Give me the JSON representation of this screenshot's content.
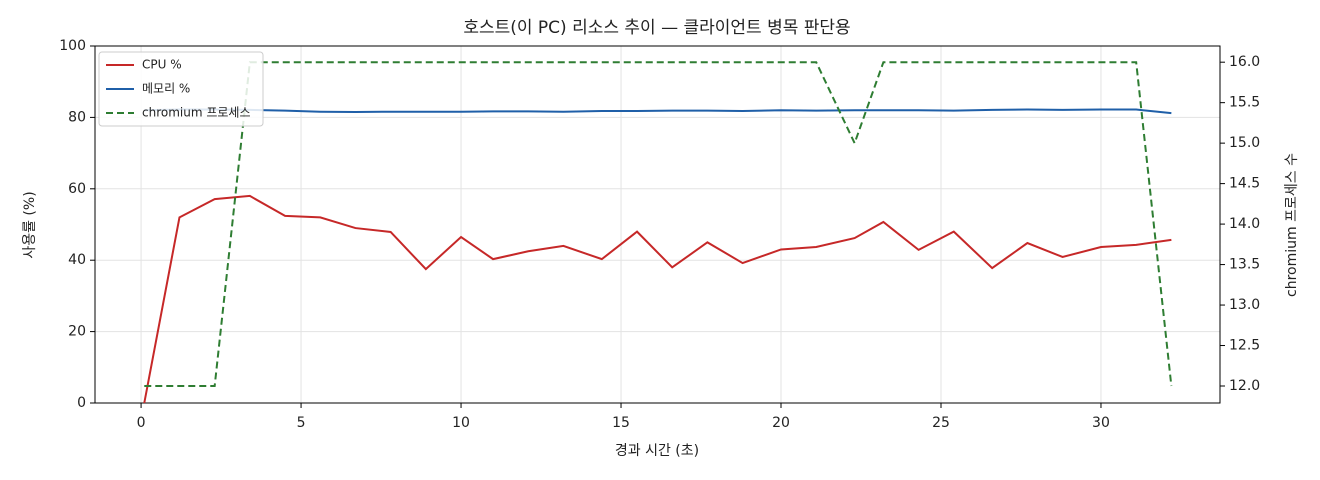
{
  "chart_data": {
    "type": "line",
    "title": "호스트(이 PC) 리소스 추이 — 클라이언트 병목 판단용",
    "x_label": "경과 시간 (초)",
    "y_label": "사용률 (%)",
    "y2_label": "chromium 프로세스 수",
    "x": [
      0.1,
      1.2,
      2.3,
      3.4,
      4.5,
      5.6,
      6.7,
      7.8,
      8.9,
      10.0,
      11.0,
      12.1,
      13.2,
      14.4,
      15.5,
      16.6,
      17.7,
      18.8,
      20.0,
      21.1,
      22.3,
      23.2,
      24.3,
      25.4,
      26.6,
      27.7,
      28.8,
      30.0,
      31.1,
      32.2
    ],
    "series": [
      {
        "name": "CPU %",
        "color": "#c62828",
        "style": "solid",
        "values": [
          0,
          52,
          57.1,
          58,
          52.4,
          52,
          49,
          47.9,
          37.5,
          46.5,
          40.3,
          42.5,
          44,
          40.3,
          48,
          38,
          45,
          39.2,
          43,
          43.7,
          46.2,
          50.7,
          42.9,
          48,
          37.8,
          44.8,
          40.9,
          43.7,
          44.3,
          45.7
        ]
      },
      {
        "name": "메모리 %",
        "color": "#1f5fa8",
        "style": "solid",
        "values": [
          82,
          82.2,
          82.2,
          82.1,
          81.9,
          81.6,
          81.5,
          81.6,
          81.6,
          81.6,
          81.7,
          81.7,
          81.6,
          81.8,
          81.8,
          81.9,
          81.9,
          81.8,
          82,
          81.9,
          82,
          82,
          82,
          81.9,
          82.1,
          82.2,
          82.1,
          82.2,
          82.2,
          81.2
        ]
      },
      {
        "name": "chromium 프로세스",
        "color": "#2e7d32",
        "style": "dashed",
        "axis": "y2",
        "values": [
          12,
          12,
          12,
          16,
          16,
          16,
          16,
          16,
          16,
          16,
          16,
          16,
          16,
          16,
          16,
          16,
          16,
          16,
          16,
          16,
          15,
          16,
          16,
          16,
          16,
          16,
          16,
          16,
          16,
          12
        ]
      }
    ],
    "xlim": [
      -1.44,
      33.72
    ],
    "xticks": [
      0,
      5,
      10,
      15,
      20,
      25,
      30
    ],
    "ylim": [
      0,
      100
    ],
    "yticks": [
      0,
      20,
      40,
      60,
      80,
      100
    ],
    "y2lim": [
      11.79,
      16.2
    ],
    "y2ticks": [
      {
        "value": 12,
        "label": "12.0"
      },
      12.5,
      {
        "value": 13,
        "label": "13.0"
      },
      13.5,
      {
        "value": 14,
        "label": "14.0"
      },
      14.5,
      {
        "value": 15,
        "label": "15.0"
      },
      15.5,
      {
        "value": 16,
        "label": "16.0"
      }
    ],
    "grid": true,
    "legend": "upper-left"
  }
}
